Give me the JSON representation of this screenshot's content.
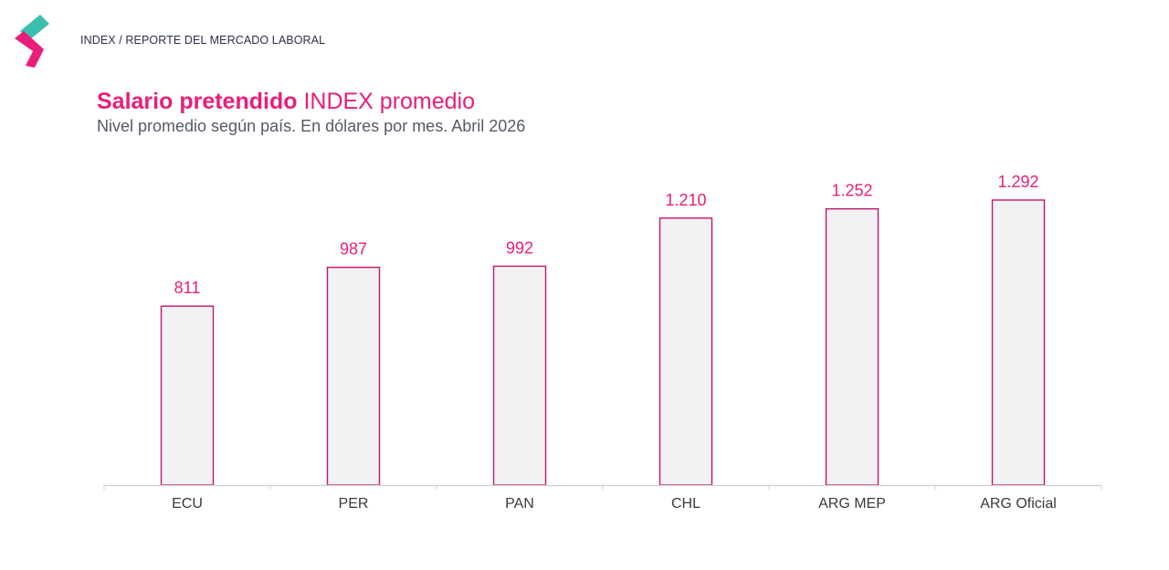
{
  "header": {
    "breadcrumb": "INDEX / REPORTE DEL MERCADO LABORAL"
  },
  "colors": {
    "accent": "#e91e7a",
    "bar_fill": "#f2f2f3",
    "bar_stroke": "#c2166e",
    "axis": "#cfcfd3",
    "logo_teal": "#3dbfae",
    "logo_pink": "#e91e7a"
  },
  "chart_data": {
    "type": "bar",
    "title_bold": "Salario pretendido",
    "title_rest": "INDEX promedio",
    "subtitle": "Nivel promedio según país. En dólares por mes. Abril 2026",
    "categories": [
      "ECU",
      "PER",
      "PAN",
      "CHL",
      "ARG MEP",
      "ARG Oficial"
    ],
    "values": [
      811,
      987,
      992,
      1210,
      1252,
      1292
    ],
    "value_labels": [
      "811",
      "987",
      "992",
      "1.210",
      "1.252",
      "1.292"
    ],
    "ylim": [
      0,
      1300
    ],
    "grid": false,
    "legend": "none"
  }
}
